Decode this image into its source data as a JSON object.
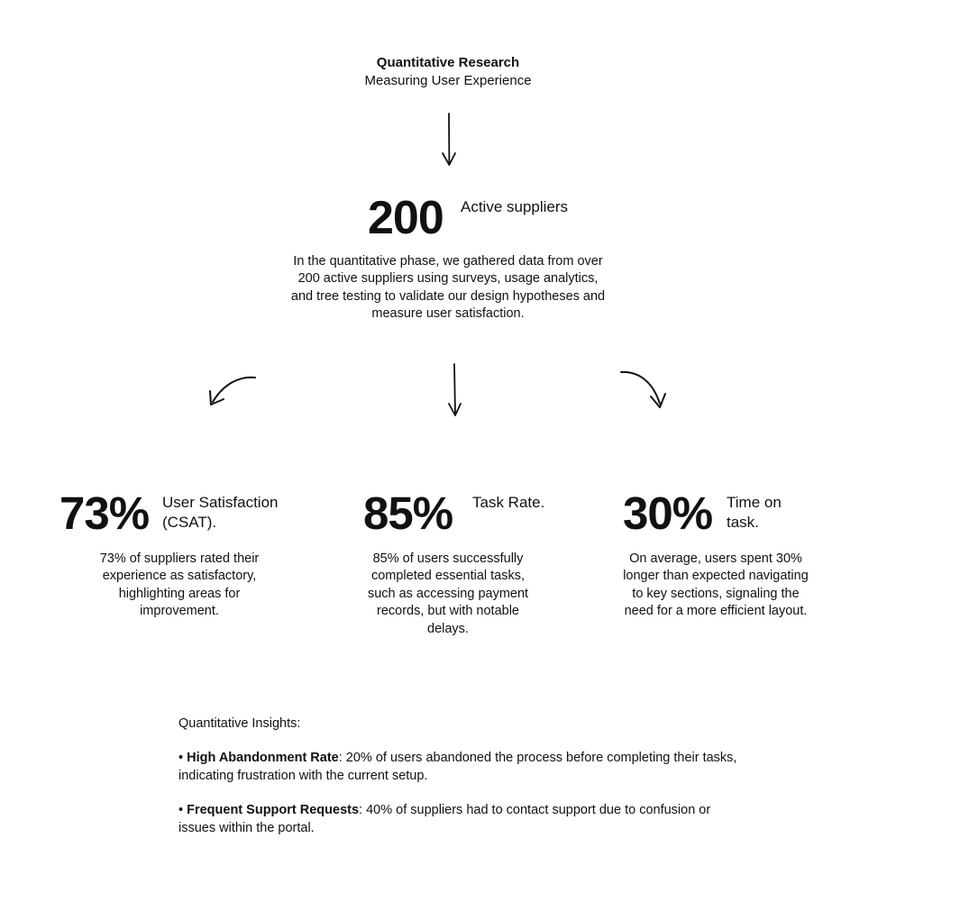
{
  "header": {
    "title": "Quantitative Research",
    "subtitle": "Measuring User Experience"
  },
  "main_stat": {
    "number": "200",
    "label": "Active suppliers",
    "description": "In the quantitative phase, we gathered data from over 200 active suppliers using surveys, usage analytics, and tree testing to validate our design hypotheses and measure user satisfaction."
  },
  "stats": [
    {
      "number": "73%",
      "label": "User Satisfaction (CSAT).",
      "description": "73% of suppliers rated their experience as satisfactory, highlighting areas for improvement."
    },
    {
      "number": "85%",
      "label": "Task Rate.",
      "description": "85% of users successfully completed essential tasks, such as accessing payment records, but with notable delays."
    },
    {
      "number": "30%",
      "label": "Time on task.",
      "description": "On average, users spent 30% longer than expected navigating to key sections, signaling the need for a more efficient layout."
    }
  ],
  "insights": {
    "heading": "Quantitative Insights:",
    "items": [
      {
        "bullet": "•",
        "title": "High Abandonment Rate",
        "text": ": 20% of users abandoned the process before completing their tasks, indicating frustration with the current setup."
      },
      {
        "bullet": "•",
        "title": "Frequent Support Requests",
        "text": ": 40% of suppliers had to contact support due to confusion or issues within the portal."
      }
    ]
  },
  "colors": {
    "text": "#111111",
    "background": "#ffffff"
  },
  "icons": {
    "top_arrow": "arrow-down-icon",
    "left_arrow": "curved-arrow-down-left-icon",
    "middle_arrow": "arrow-down-icon",
    "right_arrow": "curved-arrow-down-right-icon"
  }
}
